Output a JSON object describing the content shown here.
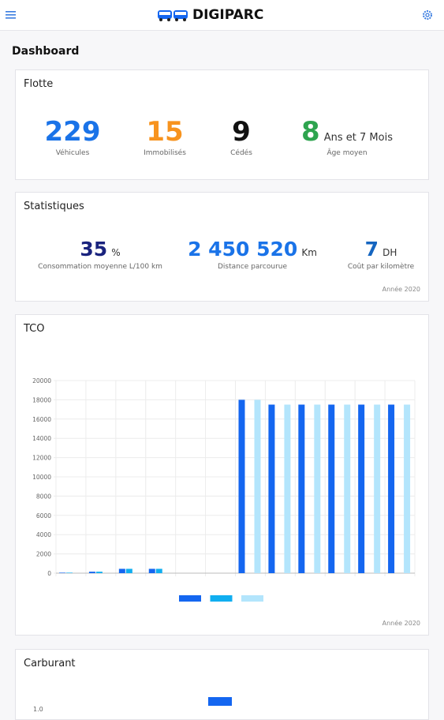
{
  "header": {
    "brand": "DIGIPARC"
  },
  "page_title": "Dashboard",
  "flotte": {
    "title": "Flotte",
    "items": [
      {
        "value": "229",
        "label": "Véhicules",
        "color": "#1a73e8"
      },
      {
        "value": "15",
        "label": "Immobilisés",
        "color": "#f7931e"
      },
      {
        "value": "9",
        "label": "Cédés",
        "color": "#111111"
      }
    ],
    "age": {
      "value": "8",
      "unit": "Ans et 7 Mois",
      "label": "Âge moyen",
      "color": "#2ea44f"
    }
  },
  "statistiques": {
    "title": "Statistiques",
    "items": [
      {
        "value": "35",
        "unit": "%",
        "label": "Consommation moyenne L/100 km",
        "color": "#1a237e"
      },
      {
        "value": "2 450 520",
        "unit": "Km",
        "label": "Distance parcourue",
        "color": "#1a73e8"
      },
      {
        "value": "7",
        "unit": "DH",
        "label": "Coût par kilomètre",
        "color": "#1565c0"
      }
    ],
    "note": "Année 2020"
  },
  "chart_data": {
    "type": "bar",
    "title": "TCO",
    "categories": [
      null,
      null,
      null,
      null,
      null,
      null,
      null,
      null,
      null,
      null,
      null,
      null
    ],
    "series": [
      {
        "color": "#1466f0",
        "values": [
          50,
          150,
          450,
          450,
          null,
          null,
          18000,
          17500,
          17500,
          17500,
          17500,
          17500
        ]
      },
      {
        "color": "#10aef0",
        "values": [
          50,
          150,
          450,
          450,
          null,
          null,
          null,
          null,
          null,
          null,
          null,
          null
        ]
      },
      {
        "color": "#b3e5fc",
        "values": [
          null,
          null,
          null,
          null,
          null,
          null,
          18000,
          17500,
          17500,
          17500,
          17500,
          17500
        ]
      }
    ],
    "ylim": [
      0,
      20000
    ],
    "yticks": [
      0,
      2000,
      4000,
      6000,
      8000,
      10000,
      12000,
      14000,
      16000,
      18000,
      20000
    ],
    "grid": true,
    "annotation": "Année 2020"
  },
  "carburant": {
    "title": "Carburant",
    "ytick": {
      "value": 1,
      "label": "1.0"
    }
  }
}
